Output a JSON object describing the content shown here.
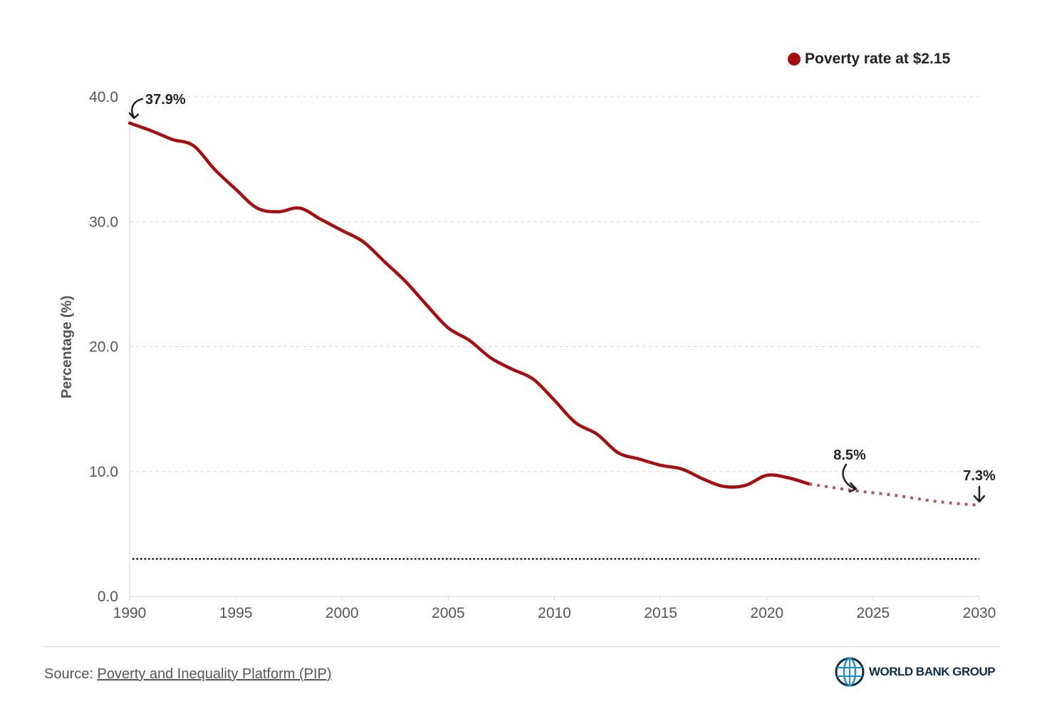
{
  "chart_data": {
    "type": "line",
    "title": "",
    "xlabel": "",
    "ylabel": "Percentage (%)",
    "xlim": [
      1990,
      2030
    ],
    "ylim": [
      0,
      40
    ],
    "xticks": [
      "1990",
      "1995",
      "2000",
      "2005",
      "2010",
      "2015",
      "2020",
      "2025",
      "2030"
    ],
    "yticks": [
      "0.0",
      "10.0",
      "20.0",
      "30.0",
      "40.0"
    ],
    "grid": "horizontal dashed",
    "legend": {
      "placement": "top-right",
      "entries": [
        {
          "label": "Poverty rate at $2.15",
          "color": "#a50f0f"
        }
      ]
    },
    "series": [
      {
        "name": "Poverty rate at $2.15",
        "style": "solid",
        "color": "#a50f0f",
        "x": [
          1990,
          1991,
          1992,
          1993,
          1994,
          1995,
          1996,
          1997,
          1998,
          1999,
          2000,
          2001,
          2002,
          2003,
          2004,
          2005,
          2006,
          2007,
          2008,
          2009,
          2010,
          2011,
          2012,
          2013,
          2014,
          2015,
          2016,
          2017,
          2018,
          2019,
          2020,
          2021,
          2022
        ],
        "y": [
          37.9,
          37.3,
          36.6,
          36.1,
          34.2,
          32.6,
          31.1,
          30.8,
          31.1,
          30.2,
          29.3,
          28.4,
          26.8,
          25.2,
          23.3,
          21.5,
          20.5,
          19.1,
          18.2,
          17.4,
          15.7,
          13.9,
          13.0,
          11.5,
          11.0,
          10.5,
          10.2,
          9.4,
          8.8,
          8.9,
          9.7,
          9.5,
          9.0
        ]
      },
      {
        "name": "Projection",
        "style": "dotted",
        "color": "#b5565b",
        "x": [
          2022,
          2024,
          2026,
          2028,
          2030
        ],
        "y": [
          9.0,
          8.5,
          8.1,
          7.6,
          7.3
        ]
      }
    ],
    "reference_line": {
      "y": 3.0,
      "style": "dotted",
      "color": "#111111"
    },
    "annotations": [
      {
        "x": 1990,
        "y": 37.9,
        "text": "37.9%"
      },
      {
        "x": 2024,
        "y": 8.5,
        "text": "8.5%"
      },
      {
        "x": 2030,
        "y": 7.3,
        "text": "7.3%"
      }
    ]
  },
  "footer": {
    "source_prefix": "Source: ",
    "source_link": "Poverty and Inequality Platform (PIP)",
    "logo_text": "WORLD BANK GROUP"
  }
}
